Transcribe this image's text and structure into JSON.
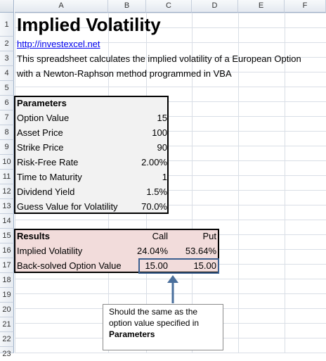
{
  "columns": [
    "A",
    "B",
    "C",
    "D",
    "E",
    "F"
  ],
  "rows": [
    "1",
    "2",
    "3",
    "4",
    "5",
    "6",
    "7",
    "8",
    "9",
    "10",
    "11",
    "12",
    "13",
    "14",
    "15",
    "16",
    "17",
    "18",
    "19",
    "20",
    "21",
    "22",
    "23"
  ],
  "header": {
    "title": "Implied Volatility",
    "link": "http://investexcel.net",
    "description_line1": "This spreadsheet calculates the implied volatility of a European Option",
    "description_line2": "with a Newton-Raphson method programmed in VBA"
  },
  "parameters": {
    "heading": "Parameters",
    "items": [
      {
        "label": "Option Value",
        "value": "15"
      },
      {
        "label": "Asset Price",
        "value": "100"
      },
      {
        "label": "Strike Price",
        "value": "90"
      },
      {
        "label": "Risk-Free Rate",
        "value": "2.00%"
      },
      {
        "label": "Time to Maturity",
        "value": "1"
      },
      {
        "label": "Dividend Yield",
        "value": "1.5%"
      },
      {
        "label": "Guess Value for Volatility",
        "value": "70.0%"
      }
    ]
  },
  "results": {
    "heading": "Results",
    "call_header": "Call",
    "put_header": "Put",
    "implied_vol_label": "Implied Volatility",
    "implied_vol_call": "24.04%",
    "implied_vol_put": "53.64%",
    "backsolved_label": "Back-solved Option Value",
    "backsolved_call": "15.00",
    "backsolved_put": "15.00"
  },
  "callout": {
    "line1": "Should the same as the",
    "line2": "option value specified in",
    "line3": "Parameters"
  },
  "colors": {
    "parameters_fill": "#f2f2f2",
    "results_fill": "#f2dcdb",
    "highlight_border": "#3b5f8f",
    "link": "#0000ee"
  }
}
